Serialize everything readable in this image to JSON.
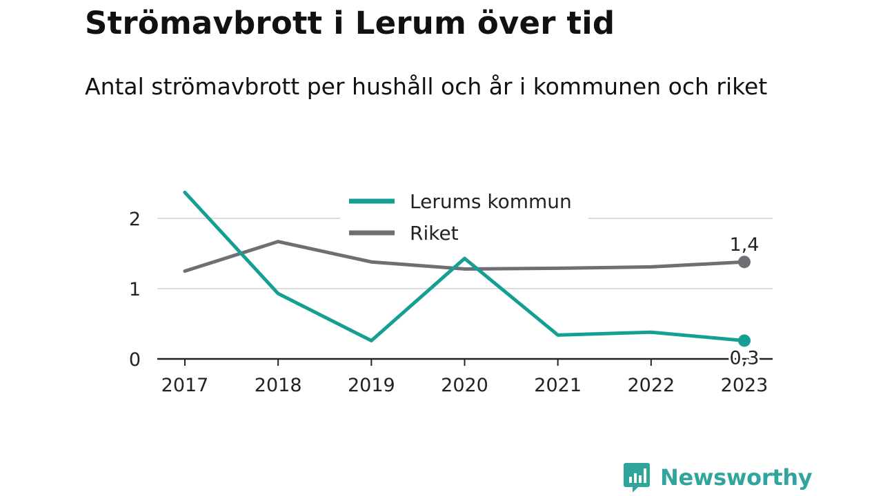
{
  "title": "Strömavbrott i Lerum över tid",
  "subtitle": "Antal strömavbrott per hushåll och år i kommunen och riket",
  "brand": {
    "name": "Newsworthy",
    "icon": "newsworthy-logo-icon",
    "color": "#2fa59b"
  },
  "chart_data": {
    "type": "line",
    "title": "Strömavbrott i Lerum över tid",
    "subtitle": "Antal strömavbrott per hushåll och år i kommunen och riket",
    "xlabel": "",
    "ylabel": "",
    "categories": [
      "2017",
      "2018",
      "2019",
      "2020",
      "2021",
      "2022",
      "2023"
    ],
    "ylim": [
      0,
      2.4
    ],
    "yticks": [
      0,
      1,
      2
    ],
    "ytick_labels": [
      "0",
      "1",
      "2"
    ],
    "grid": true,
    "legend_position": "top-center",
    "series": [
      {
        "name": "Lerums kommun",
        "color": "#159f93",
        "values": [
          2.37,
          0.93,
          0.26,
          1.43,
          0.34,
          0.38,
          0.26
        ],
        "end_label": "0,3"
      },
      {
        "name": "Riket",
        "color": "#6f6e75",
        "values": [
          1.25,
          1.67,
          1.38,
          1.28,
          1.29,
          1.31,
          1.38
        ],
        "end_label": "1,4"
      }
    ]
  }
}
